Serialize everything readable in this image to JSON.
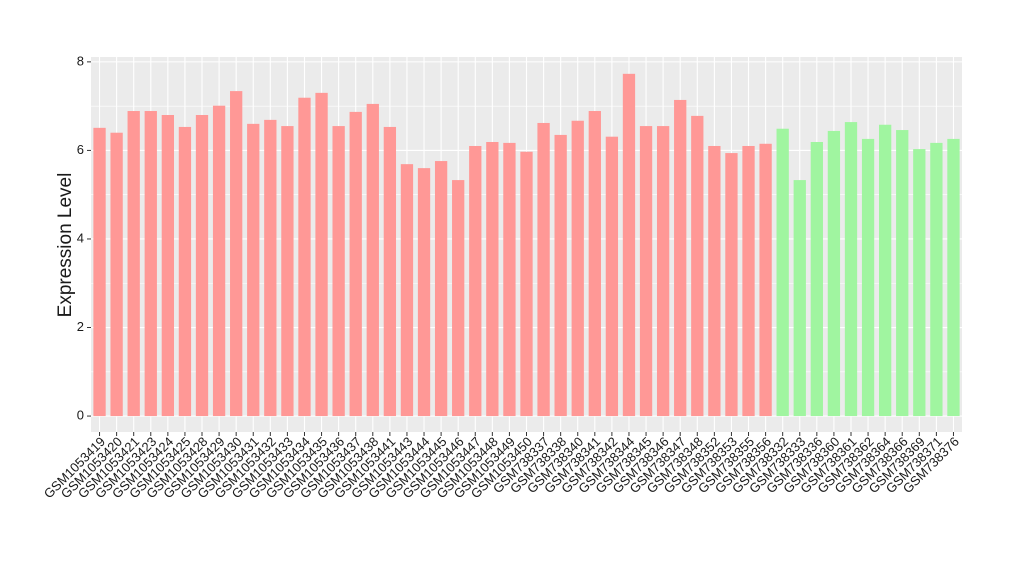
{
  "chart_data": {
    "type": "bar",
    "y_label": "Expression Level",
    "categories": [
      "GSM1053419",
      "GSM1053420",
      "GSM1053421",
      "GSM1053423",
      "GSM1053424",
      "GSM1053425",
      "GSM1053428",
      "GSM1053429",
      "GSM1053430",
      "GSM1053431",
      "GSM1053432",
      "GSM1053433",
      "GSM1053434",
      "GSM1053435",
      "GSM1053436",
      "GSM1053437",
      "GSM1053438",
      "GSM1053441",
      "GSM1053443",
      "GSM1053444",
      "GSM1053445",
      "GSM1053446",
      "GSM1053447",
      "GSM1053448",
      "GSM1053449",
      "GSM1053450",
      "GSM738337",
      "GSM738338",
      "GSM738340",
      "GSM738341",
      "GSM738342",
      "GSM738344",
      "GSM738345",
      "GSM738346",
      "GSM738347",
      "GSM738348",
      "GSM738352",
      "GSM738353",
      "GSM738355",
      "GSM738356",
      "GSM738332",
      "GSM738333",
      "GSM738336",
      "GSM738360",
      "GSM738361",
      "GSM738362",
      "GSM738364",
      "GSM738366",
      "GSM738369",
      "GSM738371",
      "GSM738376"
    ],
    "values": [
      6.51,
      6.4,
      6.89,
      6.89,
      6.8,
      6.53,
      6.8,
      7.01,
      7.34,
      6.6,
      6.69,
      6.55,
      7.19,
      7.3,
      6.55,
      6.87,
      7.05,
      6.53,
      5.69,
      5.6,
      5.76,
      5.33,
      6.1,
      6.19,
      6.17,
      5.97,
      6.62,
      6.35,
      6.67,
      6.89,
      6.31,
      7.73,
      6.55,
      6.55,
      7.14,
      6.78,
      6.1,
      5.94,
      6.1,
      6.15,
      6.49,
      5.33,
      6.19,
      6.44,
      6.64,
      6.26,
      6.58,
      6.46,
      6.03,
      6.17,
      6.26
    ],
    "colors": [
      "#ff9896",
      "#ff9896",
      "#ff9896",
      "#ff9896",
      "#ff9896",
      "#ff9896",
      "#ff9896",
      "#ff9896",
      "#ff9896",
      "#ff9896",
      "#ff9896",
      "#ff9896",
      "#ff9896",
      "#ff9896",
      "#ff9896",
      "#ff9896",
      "#ff9896",
      "#ff9896",
      "#ff9896",
      "#ff9896",
      "#ff9896",
      "#ff9896",
      "#ff9896",
      "#ff9896",
      "#ff9896",
      "#ff9896",
      "#ff9896",
      "#ff9896",
      "#ff9896",
      "#ff9896",
      "#ff9896",
      "#ff9896",
      "#ff9896",
      "#ff9896",
      "#ff9896",
      "#ff9896",
      "#ff9896",
      "#ff9896",
      "#ff9896",
      "#ff9896",
      "#a0f5a0",
      "#a0f5a0",
      "#a0f5a0",
      "#a0f5a0",
      "#a0f5a0",
      "#a0f5a0",
      "#a0f5a0",
      "#a0f5a0",
      "#a0f5a0",
      "#a0f5a0",
      "#a0f5a0"
    ],
    "ylim": [
      -0.36,
      8.11
    ],
    "yticks": [
      0,
      2,
      4,
      6,
      8
    ],
    "grid": true
  }
}
